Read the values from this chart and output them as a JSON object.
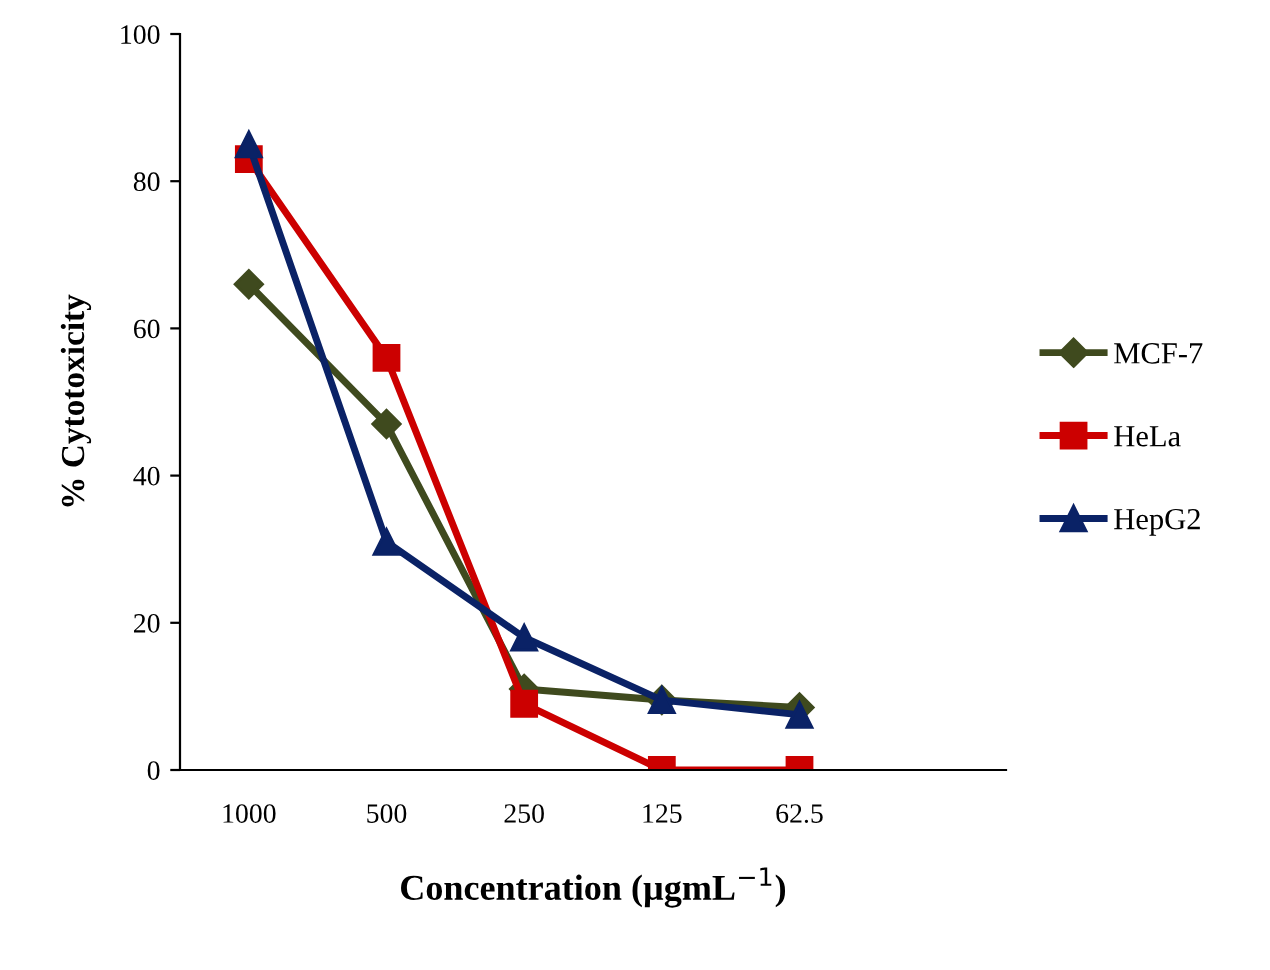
{
  "chart_data": {
    "type": "line",
    "xlabel": "Concentration (µgmL$^{−1}$)",
    "ylabel": "% Cytotoxicity",
    "categories": [
      "1000",
      "500",
      "250",
      "125",
      "62.5"
    ],
    "series": [
      {
        "name": "MCF-7",
        "color": "#3f4a1e",
        "marker": "diamond",
        "values": [
          66,
          47,
          11,
          9.5,
          8.5
        ]
      },
      {
        "name": "HeLa",
        "color": "#cc0000",
        "marker": "square",
        "values": [
          83,
          56,
          9,
          0,
          0
        ]
      },
      {
        "name": "HepG2",
        "color": "#0a2266",
        "marker": "triangle",
        "values": [
          85,
          31,
          18,
          9.5,
          7.5
        ]
      }
    ],
    "ylim": [
      0,
      100
    ],
    "yticks": [
      0,
      20,
      40,
      60,
      80,
      100
    ],
    "grid": false,
    "legend": "right",
    "line_style": "solid"
  }
}
